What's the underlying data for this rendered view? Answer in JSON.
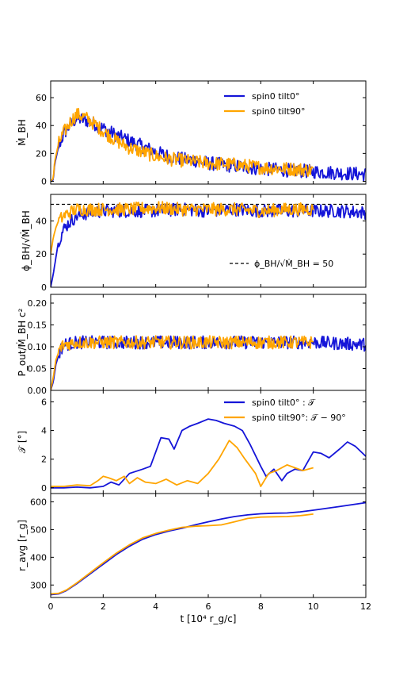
{
  "colors": {
    "blue": "#1515d8",
    "orange": "#ffa500",
    "axis": "#000000"
  },
  "chart_data": [
    {
      "type": "line",
      "ylabel": "Ṁ_BH",
      "xlim": [
        0,
        12
      ],
      "ylim": [
        -2,
        72
      ],
      "yticks": [
        "0",
        "20",
        "40",
        "60"
      ],
      "ytick_values": [
        0,
        20,
        40,
        60
      ],
      "legend": {
        "placement": "top-right",
        "entries": [
          "spin0 tilt0°",
          "spin0 tilt90°"
        ]
      },
      "series": [
        {
          "name": "spin0 tilt0°",
          "color": "#1515d8",
          "noise": 5,
          "x": [
            0,
            0.1,
            0.15,
            0.3,
            0.5,
            0.8,
            1.0,
            1.3,
            1.6,
            2.0,
            2.5,
            3.0,
            3.5,
            4.0,
            4.5,
            5.0,
            5.5,
            6.0,
            7.0,
            8.0,
            9.0,
            10.0,
            11.0,
            12.0
          ],
          "y": [
            0,
            1,
            12,
            25,
            34,
            42,
            45,
            44,
            42,
            38,
            33,
            29,
            25,
            21,
            18,
            16,
            15,
            13,
            11,
            9,
            8,
            7,
            6,
            5
          ]
        },
        {
          "name": "spin0 tilt90°",
          "color": "#ffa500",
          "noise": 5,
          "x": [
            0,
            0.1,
            0.15,
            0.3,
            0.5,
            0.8,
            1.0,
            1.3,
            1.6,
            2.0,
            2.5,
            3.0,
            3.5,
            4.0,
            4.5,
            5.0,
            5.5,
            6.0,
            7.0,
            8.0,
            9.0,
            10.0
          ],
          "y": [
            0,
            2,
            14,
            27,
            35,
            44,
            48,
            46,
            42,
            36,
            29,
            24,
            21,
            18,
            16,
            15,
            14,
            13,
            12,
            10,
            9,
            8
          ]
        }
      ]
    },
    {
      "type": "line",
      "ylabel": "ϕ_BH/√Ṁ_BH",
      "xlim": [
        0,
        12
      ],
      "ylim": [
        0,
        56
      ],
      "yticks": [
        "0",
        "20",
        "40"
      ],
      "ytick_values": [
        0,
        20,
        40
      ],
      "legend": {
        "placement": "bottom-right",
        "entries": [
          "ϕ_BH/√Ṁ_BH = 50"
        ]
      },
      "reference_line": {
        "y": 50,
        "label": "ϕ_BH/√Ṁ_BH = 50",
        "style": "dashed"
      },
      "series": [
        {
          "name": "spin0 tilt0°",
          "color": "#1515d8",
          "noise": 4,
          "x": [
            0,
            0.1,
            0.2,
            0.3,
            0.5,
            0.7,
            1.0,
            1.5,
            2.0,
            3.0,
            4.0,
            5.0,
            6.0,
            7.0,
            8.0,
            9.0,
            10.0,
            11.0,
            12.0
          ],
          "y": [
            0,
            8,
            18,
            28,
            35,
            39,
            43,
            45,
            46,
            46,
            46,
            47,
            46,
            47,
            46,
            46,
            46,
            46,
            45
          ]
        },
        {
          "name": "spin0 tilt90°",
          "color": "#ffa500",
          "noise": 4,
          "x": [
            0,
            0.1,
            0.2,
            0.3,
            0.5,
            0.7,
            1.0,
            1.5,
            2.0,
            3.0,
            4.0,
            5.0,
            6.0,
            7.0,
            8.0,
            9.0,
            10.0
          ],
          "y": [
            20,
            30,
            36,
            40,
            43,
            45,
            47,
            47,
            47,
            47,
            48,
            47,
            47,
            47,
            46,
            47,
            47
          ]
        }
      ]
    },
    {
      "type": "line",
      "ylabel": "P_out/Ṁ_BH c²",
      "xlim": [
        0,
        12
      ],
      "ylim": [
        0,
        0.22
      ],
      "yticks": [
        "0.00",
        "0.05",
        "0.10",
        "0.15",
        "0.20"
      ],
      "ytick_values": [
        0,
        0.05,
        0.1,
        0.15,
        0.2
      ],
      "series": [
        {
          "name": "spin0 tilt0°",
          "color": "#1515d8",
          "noise": 0.015,
          "x": [
            0,
            0.1,
            0.2,
            0.35,
            0.5,
            1.0,
            2.0,
            4.0,
            6.0,
            8.0,
            10.0,
            12.0
          ],
          "y": [
            0,
            0.02,
            0.06,
            0.09,
            0.105,
            0.11,
            0.11,
            0.11,
            0.11,
            0.11,
            0.11,
            0.105
          ]
        },
        {
          "name": "spin0 tilt90°",
          "color": "#ffa500",
          "noise": 0.015,
          "x": [
            0,
            0.1,
            0.2,
            0.35,
            0.5,
            1.0,
            2.0,
            4.0,
            6.0,
            8.0,
            10.0
          ],
          "y": [
            0,
            0.03,
            0.07,
            0.095,
            0.105,
            0.11,
            0.11,
            0.11,
            0.11,
            0.11,
            0.11
          ]
        }
      ]
    },
    {
      "type": "line",
      "ylabel": "𝒯 [°]",
      "xlim": [
        0,
        12
      ],
      "ylim": [
        -0.4,
        6.8
      ],
      "yticks": [
        "0",
        "2",
        "4",
        "6"
      ],
      "ytick_values": [
        0,
        2,
        4,
        6
      ],
      "legend": {
        "placement": "top-right",
        "entries": [
          "spin0 tilt0°  : 𝒯",
          "spin0 tilt90°: 𝒯 − 90°"
        ]
      },
      "series": [
        {
          "name": "spin0 tilt0°  : 𝒯",
          "color": "#1515d8",
          "noise": 0,
          "x": [
            0,
            0.5,
            1.0,
            1.5,
            2.0,
            2.3,
            2.6,
            3.0,
            3.5,
            3.8,
            4.0,
            4.2,
            4.5,
            4.7,
            5.0,
            5.3,
            5.6,
            6.0,
            6.3,
            6.6,
            7.0,
            7.3,
            7.6,
            8.0,
            8.2,
            8.5,
            8.8,
            9.0,
            9.3,
            9.6,
            10.0,
            10.3,
            10.6,
            11.0,
            11.3,
            11.6,
            12.0
          ],
          "y": [
            0,
            0,
            0.05,
            0,
            0.1,
            0.4,
            0.2,
            1.0,
            1.3,
            1.5,
            2.5,
            3.5,
            3.4,
            2.7,
            4.0,
            4.3,
            4.5,
            4.8,
            4.7,
            4.5,
            4.3,
            4.0,
            3.0,
            1.5,
            0.8,
            1.3,
            0.5,
            1.0,
            1.3,
            1.2,
            2.5,
            2.4,
            2.1,
            2.7,
            3.2,
            2.9,
            2.2
          ]
        },
        {
          "name": "spin0 tilt90°: 𝒯 − 90°",
          "color": "#ffa500",
          "noise": 0,
          "x": [
            0,
            0.5,
            1.0,
            1.5,
            1.8,
            2.0,
            2.2,
            2.5,
            2.8,
            3.0,
            3.3,
            3.6,
            4.0,
            4.4,
            4.8,
            5.2,
            5.6,
            6.0,
            6.4,
            6.8,
            7.1,
            7.4,
            7.8,
            8.0,
            8.3,
            8.6,
            9.0,
            9.3,
            9.6,
            10.0
          ],
          "y": [
            0.1,
            0.1,
            0.2,
            0.15,
            0.5,
            0.8,
            0.7,
            0.5,
            0.8,
            0.3,
            0.7,
            0.4,
            0.3,
            0.6,
            0.2,
            0.5,
            0.3,
            1.0,
            2.0,
            3.3,
            2.8,
            2.0,
            1.0,
            0.1,
            1.0,
            1.2,
            1.6,
            1.4,
            1.2,
            1.4
          ]
        }
      ]
    },
    {
      "type": "line",
      "ylabel": "r_avg [r_g]",
      "xlabel": "t [10⁴ r_g/c]",
      "xlim": [
        0,
        12
      ],
      "ylim": [
        255,
        630
      ],
      "yticks": [
        "300",
        "400",
        "500",
        "600"
      ],
      "ytick_values": [
        300,
        400,
        500,
        600
      ],
      "xticks": [
        "0",
        "2",
        "4",
        "6",
        "8",
        "10",
        "12"
      ],
      "xtick_values": [
        0,
        2,
        4,
        6,
        8,
        10,
        12
      ],
      "series": [
        {
          "name": "spin0 tilt0°",
          "color": "#1515d8",
          "noise": 0,
          "x": [
            0,
            0.3,
            0.6,
            1.0,
            1.5,
            2.0,
            2.5,
            3.0,
            3.5,
            4.0,
            4.5,
            5.0,
            5.5,
            6.0,
            6.5,
            7.0,
            7.5,
            8.0,
            8.5,
            9.0,
            9.5,
            10.0,
            11.0,
            12.0
          ],
          "y": [
            265,
            268,
            280,
            305,
            340,
            375,
            410,
            440,
            465,
            482,
            495,
            505,
            517,
            528,
            538,
            547,
            553,
            557,
            559,
            560,
            564,
            570,
            583,
            597
          ]
        },
        {
          "name": "spin0 tilt90°",
          "color": "#ffa500",
          "noise": 0,
          "x": [
            0,
            0.3,
            0.6,
            1.0,
            1.5,
            2.0,
            2.5,
            3.0,
            3.5,
            4.0,
            4.5,
            5.0,
            5.5,
            6.0,
            6.5,
            7.0,
            7.5,
            8.0,
            8.5,
            9.0,
            9.5,
            10.0
          ],
          "y": [
            268,
            270,
            282,
            308,
            344,
            380,
            415,
            445,
            470,
            486,
            498,
            508,
            512,
            514,
            517,
            528,
            540,
            545,
            546,
            547,
            550,
            556
          ]
        }
      ]
    }
  ]
}
